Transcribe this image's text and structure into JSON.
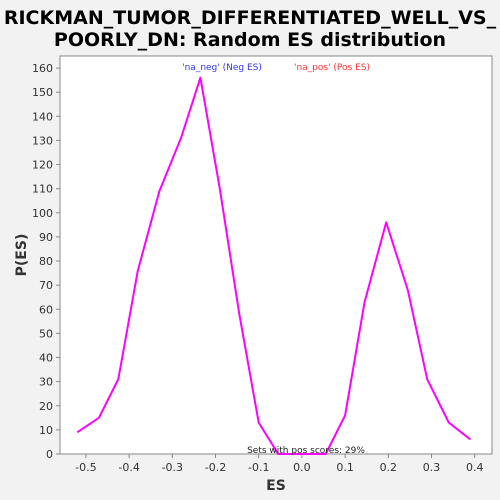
{
  "chart_data": {
    "type": "line",
    "title_lines": [
      "RICKMAN_TUMOR_DIFFERENTIATED_WELL_VS_",
      "POORLY_DN: Random ES distribution"
    ],
    "xlabel": "ES",
    "ylabel": "P(ES)",
    "xlim": [
      -0.56,
      0.44
    ],
    "ylim": [
      0,
      165
    ],
    "xticks": [
      -0.5,
      -0.4,
      -0.3,
      -0.2,
      -0.1,
      0.0,
      0.1,
      0.2,
      0.3,
      0.4
    ],
    "xtick_labels": [
      "-0.5",
      "-0.4",
      "-0.3",
      "-0.2",
      "-0.1",
      "0.0",
      "0.1",
      "0.2",
      "0.3",
      "0.4"
    ],
    "yticks": [
      0,
      10,
      20,
      30,
      40,
      50,
      60,
      70,
      80,
      90,
      100,
      110,
      120,
      130,
      140,
      150,
      160
    ],
    "grid": false,
    "legend_position": "top-center",
    "legend": [
      {
        "label": "'na_neg' (Neg ES)",
        "color": "#3333ff"
      },
      {
        "label": "'na_pos' (Pos ES)",
        "color": "#ff3333"
      }
    ],
    "series": [
      {
        "color": "#ff00ff",
        "x": [
          -0.52,
          -0.47,
          -0.425,
          -0.38,
          -0.33,
          -0.28,
          -0.235,
          -0.19,
          -0.145,
          -0.1,
          -0.055,
          -0.01,
          0.055,
          0.1,
          0.145,
          0.195,
          0.245,
          0.29,
          0.34,
          0.39
        ],
        "y": [
          9,
          15,
          31,
          76,
          109,
          131,
          156,
          110,
          58,
          13,
          0,
          0,
          0,
          16,
          63,
          96,
          68,
          31,
          13,
          6
        ]
      }
    ],
    "annotation": "Sets with pos scores: 29%"
  }
}
